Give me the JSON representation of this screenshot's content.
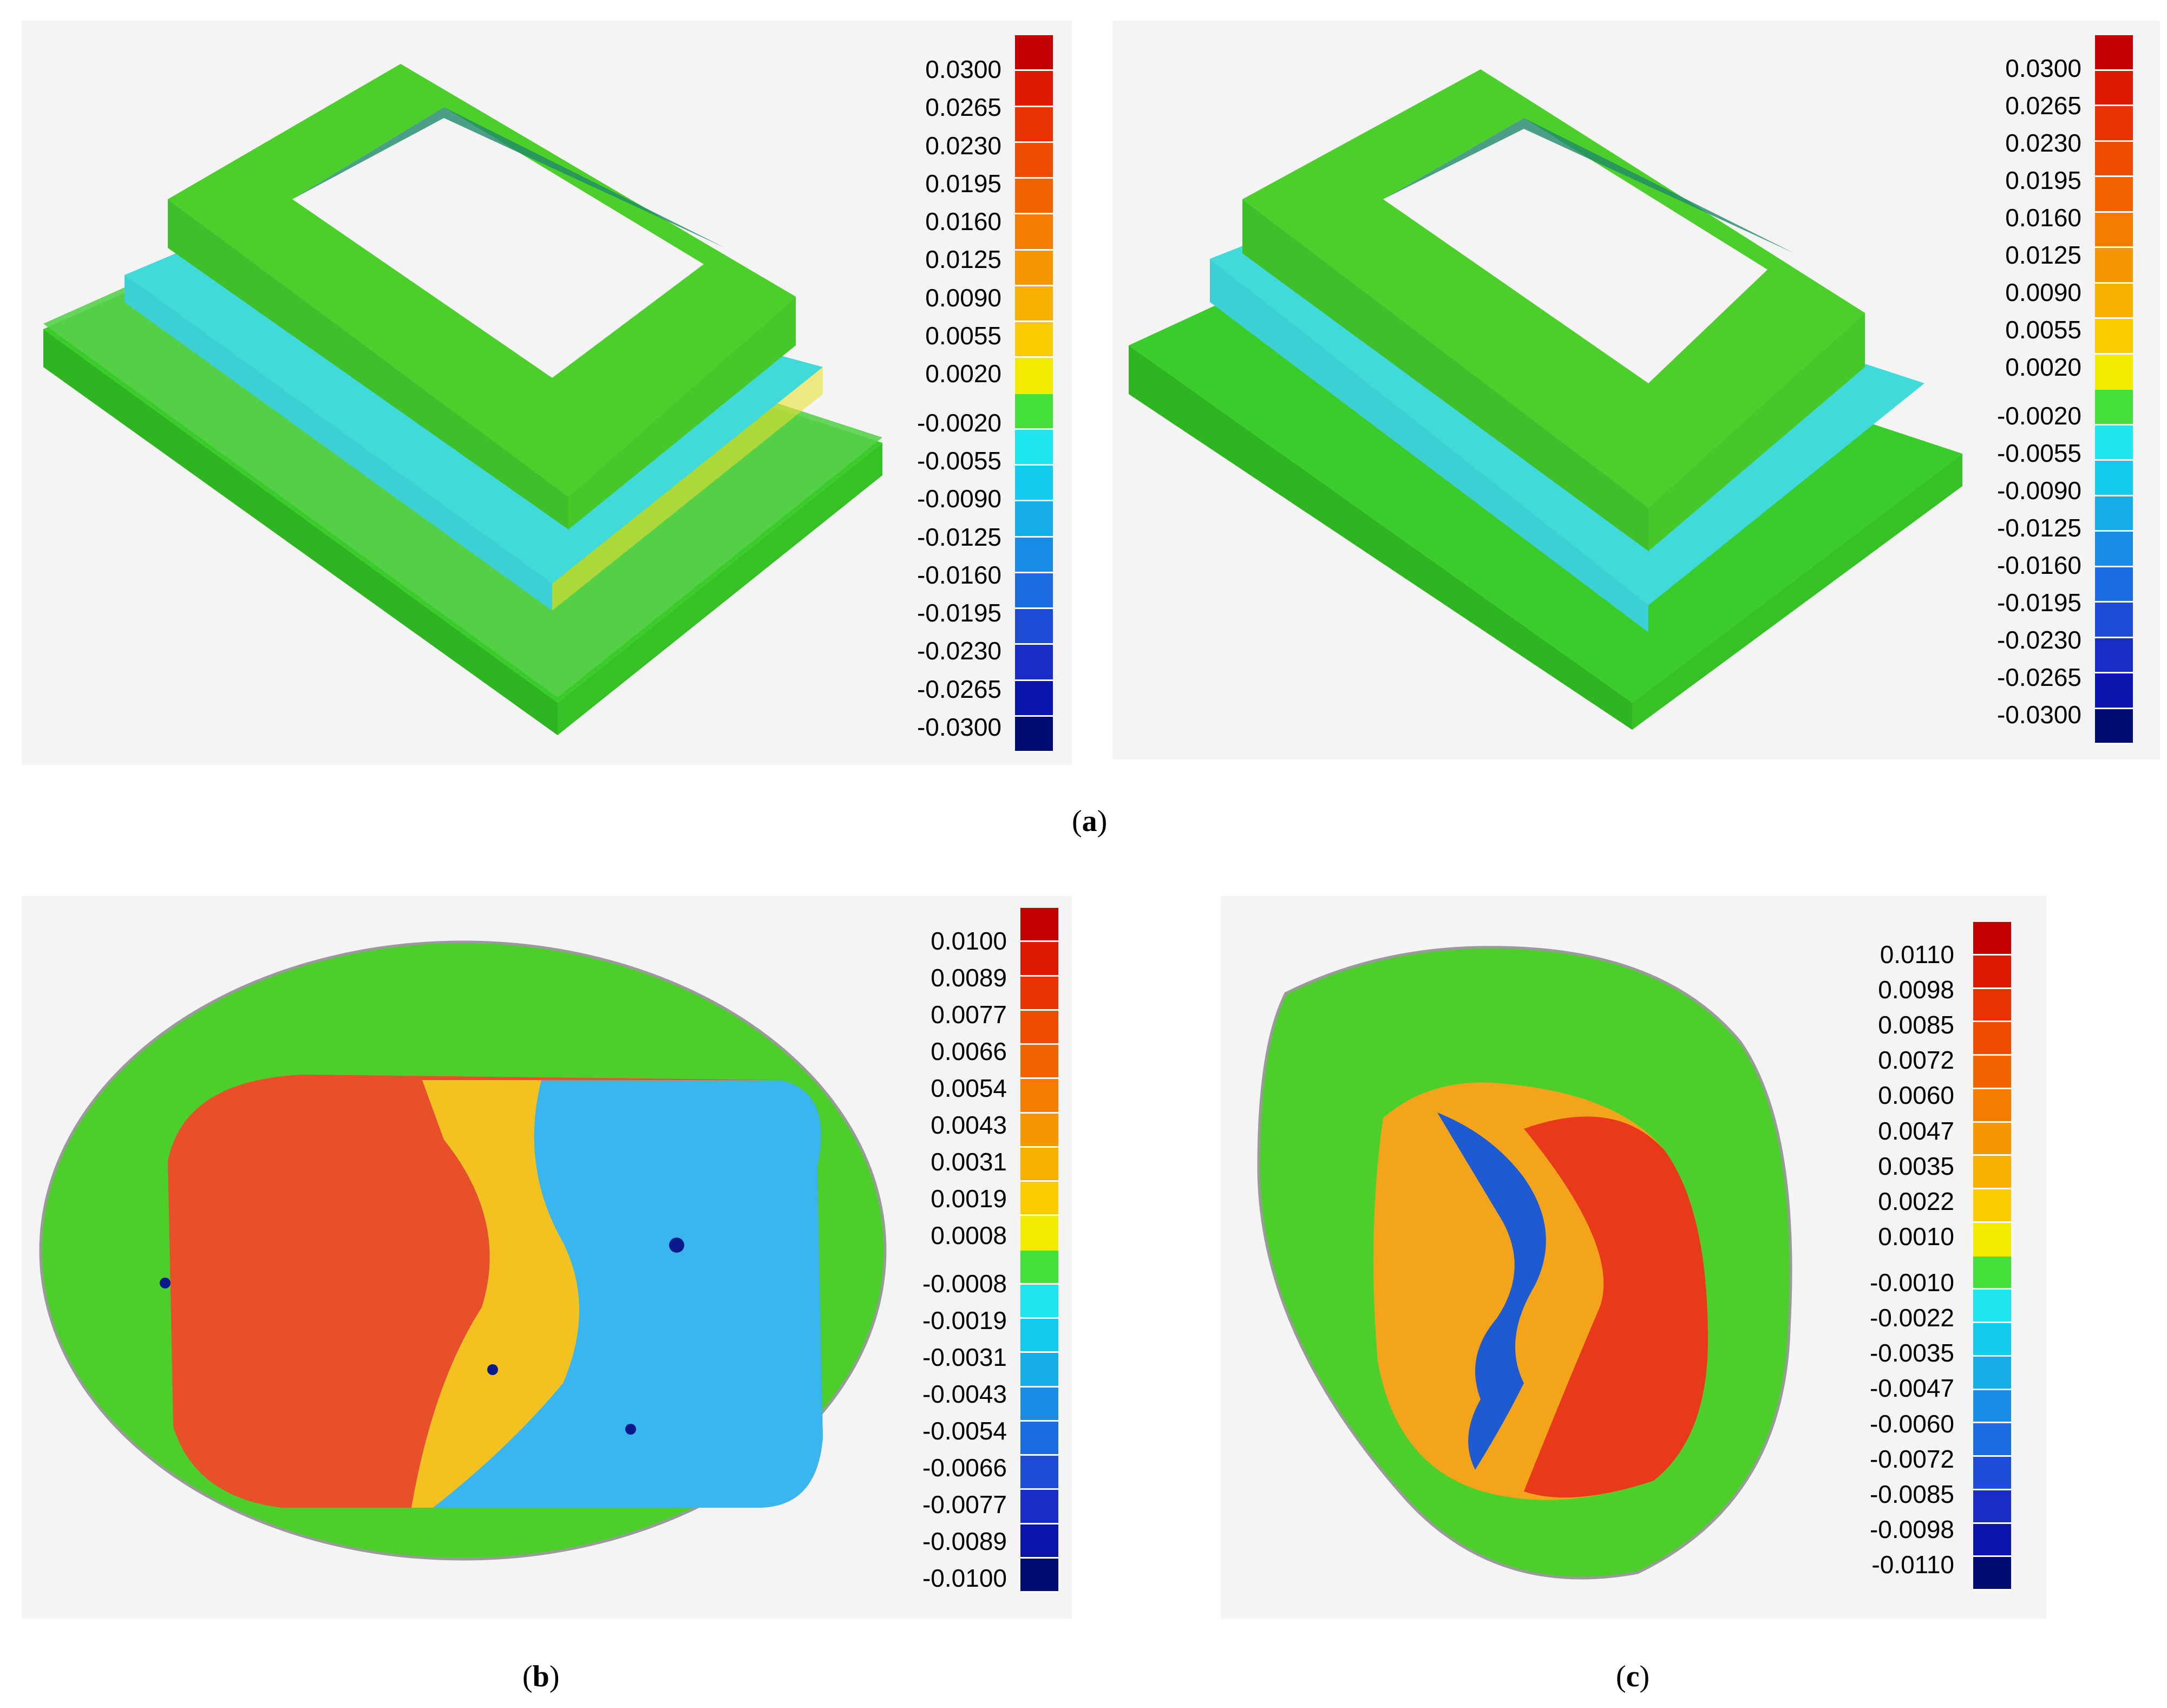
{
  "panels": {
    "a_left": {
      "labels": [
        "0.0300",
        "0.0265",
        "0.0230",
        "0.0195",
        "0.0160",
        "0.0125",
        "0.0090",
        "0.0055",
        "0.0020",
        "-0.0020",
        "-0.0055",
        "-0.0090",
        "-0.0125",
        "-0.0160",
        "-0.0195",
        "-0.0230",
        "-0.0265",
        "-0.0300"
      ]
    },
    "a_right": {
      "labels": [
        "0.0300",
        "0.0265",
        "0.0230",
        "0.0195",
        "0.0160",
        "0.0125",
        "0.0090",
        "0.0055",
        "0.0020",
        "-0.0020",
        "-0.0055",
        "-0.0090",
        "-0.0125",
        "-0.0160",
        "-0.0195",
        "-0.0230",
        "-0.0265",
        "-0.0300"
      ]
    },
    "b": {
      "labels": [
        "0.0100",
        "0.0089",
        "0.0077",
        "0.0066",
        "0.0054",
        "0.0043",
        "0.0031",
        "0.0019",
        "0.0008",
        "-0.0008",
        "-0.0019",
        "-0.0031",
        "-0.0043",
        "-0.0054",
        "-0.0066",
        "-0.0077",
        "-0.0089",
        "-0.0100"
      ]
    },
    "c": {
      "labels": [
        "0.0110",
        "0.0098",
        "0.0085",
        "0.0072",
        "0.0060",
        "0.0047",
        "0.0035",
        "0.0022",
        "0.0010",
        "-0.0010",
        "-0.0022",
        "-0.0035",
        "-0.0047",
        "-0.0060",
        "-0.0072",
        "-0.0085",
        "-0.0098",
        "-0.0110"
      ]
    }
  },
  "captions": {
    "a": "a",
    "b": "b",
    "c": "c"
  },
  "colors": {
    "scale": [
      "#c40000",
      "#dd1a00",
      "#e83200",
      "#ee4c00",
      "#f26400",
      "#f47c00",
      "#f69600",
      "#f8b000",
      "#f8cc00",
      "#f4ec00",
      "#46e03a",
      "#1ee6ee",
      "#14cbee",
      "#14adea",
      "#1a8ce6",
      "#1e6ce2",
      "#1e4cd8",
      "#1a2cc8",
      "#0c14ae",
      "#000c70"
    ],
    "green": "#4ccf2a",
    "cyan": "#3ad8d8",
    "red": "#e83a1a",
    "orange": "#f4a41a",
    "yellow": "#e8e030",
    "blue": "#2a8ee0"
  }
}
